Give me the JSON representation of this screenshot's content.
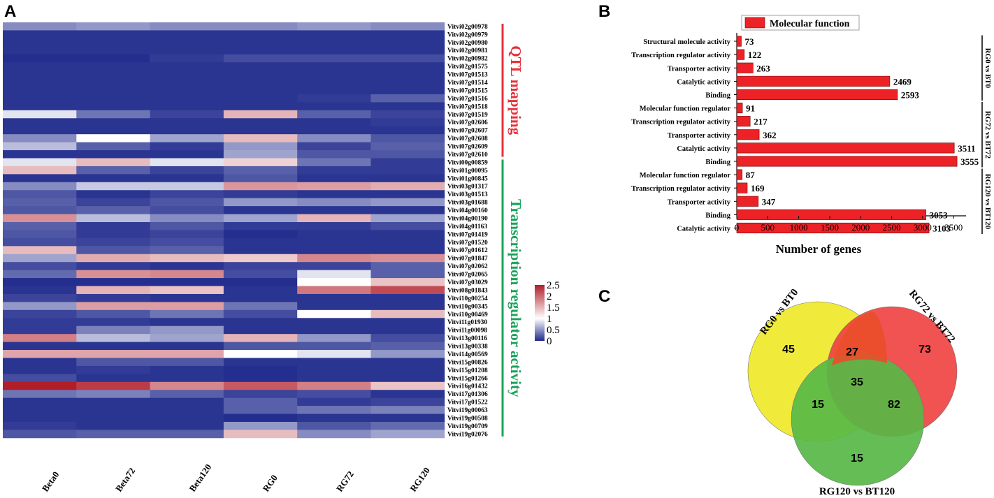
{
  "panels": {
    "a": "A",
    "b": "B",
    "c": "C"
  },
  "chart_data": [
    {
      "type": "heatmap",
      "panel": "A",
      "columns": [
        "Beta0",
        "Beta72",
        "Beta120",
        "RG0",
        "RG72",
        "RG120"
      ],
      "rows": [
        {
          "gene": "Vitvi02g00978",
          "values": [
            0.55,
            0.6,
            0.55,
            0.55,
            0.6,
            0.55
          ]
        },
        {
          "gene": "Vitvi02g00979",
          "values": [
            0.1,
            0.1,
            0.1,
            0.1,
            0.1,
            0.1
          ]
        },
        {
          "gene": "Vitvi02g00980",
          "values": [
            0.1,
            0.1,
            0.1,
            0.1,
            0.1,
            0.1
          ]
        },
        {
          "gene": "Vitvi02g00981",
          "values": [
            0.1,
            0.1,
            0.1,
            0.1,
            0.1,
            0.1
          ]
        },
        {
          "gene": "Vitvi02g00982",
          "values": [
            0.05,
            0.05,
            0.15,
            0.25,
            0.25,
            0.25
          ]
        },
        {
          "gene": "Vitvi02g01575",
          "values": [
            0.1,
            0.1,
            0.1,
            0.1,
            0.1,
            0.1
          ]
        },
        {
          "gene": "Vitvi07g01513",
          "values": [
            0.1,
            0.1,
            0.1,
            0.1,
            0.1,
            0.1
          ]
        },
        {
          "gene": "Vitvi07g01514",
          "values": [
            0.1,
            0.1,
            0.1,
            0.1,
            0.1,
            0.1
          ]
        },
        {
          "gene": "Vitvi07g01515",
          "values": [
            0.1,
            0.1,
            0.1,
            0.1,
            0.1,
            0.1
          ]
        },
        {
          "gene": "Vitvi07g01516",
          "values": [
            0.1,
            0.1,
            0.1,
            0.1,
            0.15,
            0.35
          ]
        },
        {
          "gene": "Vitvi07g01518",
          "values": [
            0.1,
            0.1,
            0.1,
            0.1,
            0.1,
            0.1
          ]
        },
        {
          "gene": "Vitvi07g01519",
          "values": [
            0.9,
            0.45,
            0.2,
            1.5,
            0.35,
            0.2
          ]
        },
        {
          "gene": "Vitvi07g02606",
          "values": [
            0.1,
            0.1,
            0.1,
            0.1,
            0.1,
            0.15
          ]
        },
        {
          "gene": "Vitvi07g02607",
          "values": [
            0.1,
            0.1,
            0.1,
            0.1,
            0.1,
            0.1
          ]
        },
        {
          "gene": "Vitvi07g02608",
          "values": [
            0.55,
            1.0,
            0.65,
            1.45,
            0.55,
            0.3
          ]
        },
        {
          "gene": "Vitvi07g02609",
          "values": [
            0.75,
            0.35,
            0.15,
            0.6,
            0.2,
            0.35
          ]
        },
        {
          "gene": "Vitvi07g02610",
          "values": [
            0.1,
            0.1,
            0.1,
            0.65,
            0.3,
            0.3
          ]
        },
        {
          "gene": "Vitvi00g00859",
          "values": [
            0.9,
            1.45,
            0.9,
            1.3,
            0.45,
            0.15
          ]
        },
        {
          "gene": "Vitvi01g00095",
          "values": [
            1.45,
            0.35,
            0.2,
            0.35,
            0.15,
            0.15
          ]
        },
        {
          "gene": "Vitvi01g00845",
          "values": [
            0.1,
            0.1,
            0.1,
            0.3,
            0.1,
            0.1
          ]
        },
        {
          "gene": "Vitvi03g01317",
          "values": [
            0.55,
            0.8,
            0.8,
            1.7,
            1.65,
            1.55
          ]
        },
        {
          "gene": "Vitvi03g01513",
          "values": [
            0.3,
            0.1,
            0.2,
            0.15,
            0.1,
            0.1
          ]
        },
        {
          "gene": "Vitvi03g01688",
          "values": [
            0.35,
            0.2,
            0.3,
            0.6,
            0.55,
            0.6
          ]
        },
        {
          "gene": "Vitvi04g00160",
          "values": [
            0.3,
            0.35,
            0.25,
            0.1,
            0.1,
            0.1
          ]
        },
        {
          "gene": "Vitvi04g00190",
          "values": [
            1.75,
            0.75,
            0.55,
            0.65,
            1.5,
            0.65
          ]
        },
        {
          "gene": "Vitvi04g01163",
          "values": [
            0.35,
            0.15,
            0.3,
            0.15,
            0.15,
            0.25
          ]
        },
        {
          "gene": "Vitvi07g01419",
          "values": [
            0.3,
            0.15,
            0.2,
            0.05,
            0.1,
            0.1
          ]
        },
        {
          "gene": "Vitvi07g01520",
          "values": [
            0.25,
            0.2,
            0.25,
            0.1,
            0.1,
            0.1
          ]
        },
        {
          "gene": "Vitvi07g01612",
          "values": [
            1.45,
            0.3,
            0.35,
            0.1,
            0.1,
            0.1
          ]
        },
        {
          "gene": "Vitvi07g01847",
          "values": [
            0.65,
            1.55,
            1.45,
            1.35,
            1.8,
            1.75
          ]
        },
        {
          "gene": "Vitvi07g02062",
          "values": [
            0.25,
            0.15,
            0.1,
            0.2,
            0.2,
            0.35
          ]
        },
        {
          "gene": "Vitvi07g02065",
          "values": [
            0.4,
            1.75,
            1.8,
            0.25,
            0.9,
            0.35
          ]
        },
        {
          "gene": "Vitvi07g03029",
          "values": [
            0.05,
            0.05,
            0.05,
            0.05,
            1.0,
            1.4
          ]
        },
        {
          "gene": "Vitvi08g01843",
          "values": [
            0.1,
            1.5,
            1.4,
            0.1,
            1.9,
            2.2
          ]
        },
        {
          "gene": "Vitvi10g00254",
          "values": [
            0.2,
            0.15,
            0.1,
            0.1,
            0.1,
            0.1
          ]
        },
        {
          "gene": "Vitvi10g00345",
          "values": [
            0.6,
            1.65,
            1.65,
            0.45,
            0.1,
            0.1
          ]
        },
        {
          "gene": "Vitvi10g00469",
          "values": [
            0.2,
            0.3,
            0.45,
            0.25,
            1.0,
            1.45
          ]
        },
        {
          "gene": "Vitvi11g01930",
          "values": [
            0.15,
            0.15,
            0.1,
            0.1,
            0.1,
            0.1
          ]
        },
        {
          "gene": "Vitvi11g00098",
          "values": [
            0.15,
            0.5,
            0.6,
            0.1,
            0.1,
            0.1
          ]
        },
        {
          "gene": "Vitvi13g00116",
          "values": [
            1.85,
            0.75,
            0.65,
            1.5,
            0.6,
            0.25
          ]
        },
        {
          "gene": "Vitvi13g00338",
          "values": [
            0.1,
            0.1,
            0.1,
            0.3,
            0.3,
            0.35
          ]
        },
        {
          "gene": "Vitvi14g00569",
          "values": [
            1.6,
            1.6,
            1.6,
            1.0,
            0.9,
            0.6
          ]
        },
        {
          "gene": "Vitvi15g00826",
          "values": [
            0.1,
            0.3,
            0.3,
            0.1,
            0.1,
            0.1
          ]
        },
        {
          "gene": "Vitvi15g01208",
          "values": [
            0.1,
            0.15,
            0.1,
            0.05,
            0.1,
            0.1
          ]
        },
        {
          "gene": "Vitvi15g01266",
          "values": [
            0.25,
            0.1,
            0.1,
            0.05,
            0.1,
            0.1
          ]
        },
        {
          "gene": "Vitvi16g01432",
          "values": [
            2.5,
            2.3,
            1.8,
            2.1,
            1.85,
            1.4
          ]
        },
        {
          "gene": "Vitvi17g01306",
          "values": [
            0.45,
            0.5,
            0.35,
            0.2,
            0.25,
            0.1
          ]
        },
        {
          "gene": "Vitvi17g01522",
          "values": [
            0.1,
            0.1,
            0.1,
            0.35,
            0.15,
            0.2
          ]
        },
        {
          "gene": "Vitvi19g00063",
          "values": [
            0.1,
            0.1,
            0.1,
            0.35,
            0.45,
            0.5
          ]
        },
        {
          "gene": "Vitvi19g00508",
          "values": [
            0.1,
            0.1,
            0.1,
            0.05,
            0.1,
            0.1
          ]
        },
        {
          "gene": "Vitvi19g00709",
          "values": [
            0.15,
            0.1,
            0.1,
            0.6,
            0.3,
            0.4
          ]
        },
        {
          "gene": "Vitvi19g02076",
          "values": [
            0.3,
            0.35,
            0.35,
            1.45,
            0.55,
            0.65
          ]
        }
      ],
      "colorbar": {
        "min": 0,
        "max": 2.5,
        "ticks": [
          "2.5",
          "2",
          "1.5",
          "1",
          "0.5",
          "0"
        ],
        "low_color": "#1f2a8c",
        "mid_color": "#ffffff",
        "high_color": "#b01e2a"
      },
      "groups": [
        {
          "label": "QTL mapping",
          "color": "#e8303b",
          "start_row": 0,
          "end_row": 16
        },
        {
          "label": "Transcription regulator activity",
          "color": "#19a35b",
          "start_row": 17,
          "end_row": 51
        }
      ]
    },
    {
      "type": "bar",
      "orientation": "horizontal",
      "panel": "B",
      "legend": "Molecular function",
      "bar_color": "#ec2227",
      "xlabel": "Number of genes",
      "xlim": [
        0,
        3700
      ],
      "xticks": [
        0,
        500,
        1000,
        1500,
        2000,
        2500,
        3000,
        3500
      ],
      "categories": [
        "Structural molecule activity",
        "Transcription regulator activity",
        "Transporter activity",
        "Catalytic activity",
        "Binding",
        "Molecular function regulator",
        "Transcription regulator activity",
        "Transporter activity",
        "Catalytic activity",
        "Binding",
        "Molecular function regulator",
        "Transcription regulator activity",
        "Transporter activity",
        "Binding",
        "Catalytic activity"
      ],
      "values": [
        73,
        122,
        263,
        2469,
        2593,
        91,
        217,
        362,
        3511,
        3555,
        87,
        169,
        347,
        3053,
        3103
      ],
      "groups": [
        {
          "label": "RG0 vs BT0",
          "start": 0,
          "end": 4
        },
        {
          "label": "RG72 vs BT72",
          "start": 5,
          "end": 9
        },
        {
          "label": "RG120 vs BT120",
          "start": 10,
          "end": 14
        }
      ]
    },
    {
      "type": "venn",
      "panel": "C",
      "sets": [
        {
          "name": "RG0 vs BT0",
          "color": "#f0eb3a"
        },
        {
          "name": "RG72 vs BT72",
          "color": "#ef3f3f"
        },
        {
          "name": "RG120 vs BT120",
          "color": "#58b947"
        }
      ],
      "regions": {
        "only_0": "45",
        "only_72": "73",
        "only_120": "15",
        "s0_72": "27",
        "s0_120": "15",
        "s72_120": "82",
        "all": "35"
      }
    }
  ]
}
